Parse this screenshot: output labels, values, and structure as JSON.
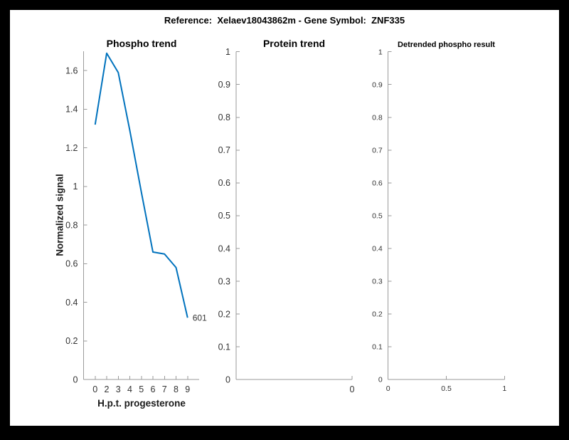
{
  "figure": {
    "title": "Reference:  Xelaev18043862m - Gene Symbol:  ZNF335",
    "background": "#ffffff",
    "frame_color": "#000000"
  },
  "colors": {
    "line": "#0072BD",
    "axis": "#9a9a9a",
    "tick_text": "#333333",
    "title_text": "#000000"
  },
  "chart_data": [
    {
      "id": "phospho-trend",
      "type": "line",
      "title": "Phospho trend",
      "xlabel": "H.p.t. progesterone",
      "ylabel": "Normalized signal",
      "categories": [
        "0",
        "2",
        "3",
        "4",
        "5",
        "6",
        "7",
        "8",
        "9"
      ],
      "values": [
        1.32,
        1.69,
        1.59,
        1.29,
        0.97,
        0.66,
        0.65,
        0.58,
        0.32
      ],
      "ylim": [
        0,
        1.7
      ],
      "xlim_index": [
        0,
        10
      ],
      "y_tick_values": [
        0,
        0.2,
        0.4,
        0.6,
        0.8,
        1,
        1.2,
        1.4,
        1.6
      ],
      "y_tick_labels": [
        "0",
        "0.2",
        "0.4",
        "0.6",
        "0.8",
        "1",
        "1.2",
        "1.4",
        "1.6"
      ],
      "end_point_label": "601",
      "line_color": "#0072BD",
      "grid": false,
      "legend": null
    },
    {
      "id": "protein-trend",
      "type": "line",
      "title": "Protein trend",
      "xlabel": "",
      "ylabel": "",
      "values": [],
      "ylim": [
        0,
        1
      ],
      "y_tick_values": [
        0,
        0.1,
        0.2,
        0.3,
        0.4,
        0.5,
        0.6,
        0.7,
        0.8,
        0.9,
        1
      ],
      "y_tick_labels": [
        "0",
        "0.1",
        "0.2",
        "0.3",
        "0.4",
        "0.5",
        "0.6",
        "0.7",
        "0.8",
        "0.9",
        "1"
      ],
      "x_ticks": [
        {
          "frac": 1,
          "label": "0"
        }
      ],
      "grid": false,
      "legend": null
    },
    {
      "id": "detrended-phospho-result",
      "type": "line",
      "title": "Detrended phospho result",
      "xlabel": "",
      "ylabel": "",
      "values": [],
      "xlim": [
        0,
        1
      ],
      "ylim": [
        0,
        1
      ],
      "y_tick_values": [
        0,
        0.1,
        0.2,
        0.3,
        0.4,
        0.5,
        0.6,
        0.7,
        0.8,
        0.9,
        1
      ],
      "y_tick_labels": [
        "0",
        "0.1",
        "0.2",
        "0.3",
        "0.4",
        "0.5",
        "0.6",
        "0.7",
        "0.8",
        "0.9",
        "1"
      ],
      "x_ticks": [
        {
          "frac": 0,
          "label": "0"
        },
        {
          "frac": 0.5,
          "label": "0.5"
        },
        {
          "frac": 1,
          "label": "1"
        }
      ],
      "grid": false,
      "legend": null
    }
  ]
}
